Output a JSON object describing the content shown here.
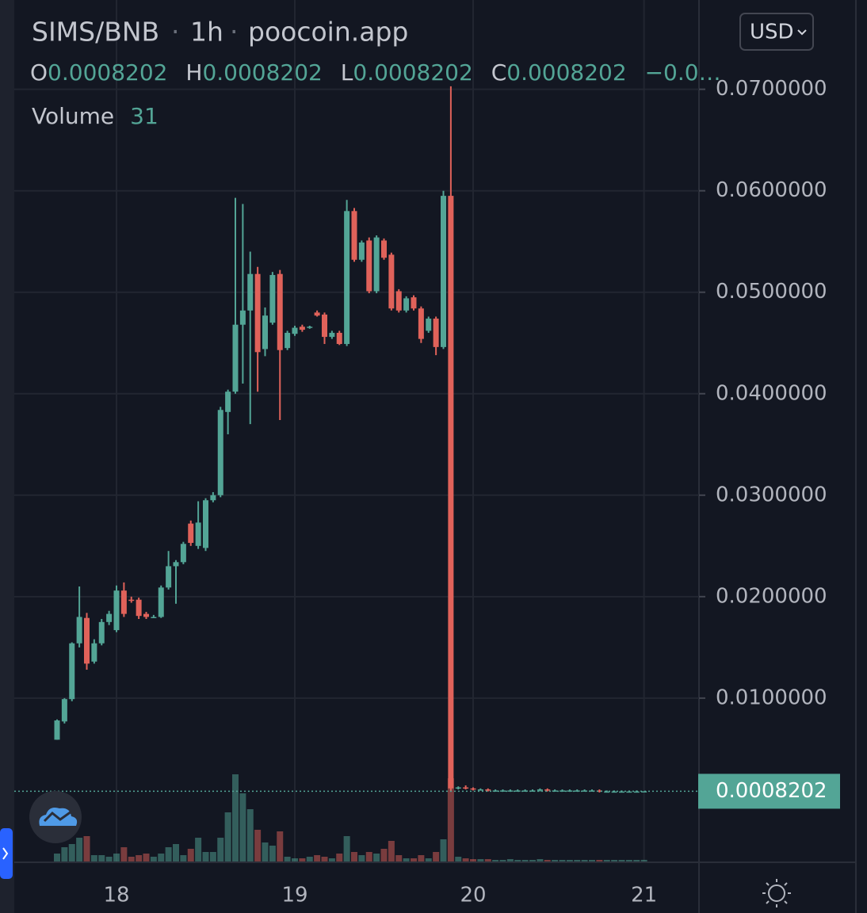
{
  "chart_data": {
    "type": "candlestick",
    "title": "SIMS/BNB",
    "interval": "1h",
    "source": "poocoin.app",
    "currency": "USD",
    "ohlc_labels": [
      "O",
      "H",
      "L",
      "C"
    ],
    "change": "−0.0…",
    "volume_label": "Volume",
    "up_color": "#53a596",
    "down_color": "#e0625a",
    "grid": true,
    "ylim": [
      -0.0061,
      0.0788
    ],
    "yticks": [
      {
        "value": 0.01,
        "label": "0.0100000"
      },
      {
        "value": 0.02,
        "label": "0.0200000"
      },
      {
        "value": 0.03,
        "label": "0.0300000"
      },
      {
        "value": 0.04,
        "label": "0.0400000"
      },
      {
        "value": 0.05,
        "label": "0.0500000"
      },
      {
        "value": 0.06,
        "label": "0.0600000"
      },
      {
        "value": 0.07,
        "label": "0.0700000"
      }
    ],
    "categories": [
      null,
      null,
      null,
      null,
      null,
      null,
      null,
      null,
      "18",
      null,
      null,
      null,
      null,
      null,
      null,
      null,
      null,
      null,
      null,
      null,
      null,
      null,
      null,
      null,
      null,
      null,
      null,
      null,
      null,
      null,
      null,
      null,
      "19",
      null,
      null,
      null,
      null,
      null,
      null,
      null,
      null,
      null,
      null,
      null,
      null,
      null,
      null,
      null,
      null,
      null,
      null,
      null,
      null,
      null,
      null,
      null,
      "20",
      null,
      null,
      null,
      null,
      null,
      null,
      null,
      null,
      null,
      null,
      null,
      null,
      null,
      null,
      null,
      null,
      null,
      null,
      null,
      null,
      null,
      null,
      "21"
    ],
    "open": [
      0.0059,
      0.0077,
      0.0099,
      0.0154,
      0.0179,
      0.0136,
      0.0154,
      0.0175,
      0.0167,
      0.0206,
      0.0197,
      0.0197,
      0.0183,
      0.018,
      0.018,
      0.0209,
      0.023,
      0.0234,
      0.0272,
      0.025,
      0.0248,
      0.0295,
      0.03,
      0.0382,
      0.0402,
      0.0468,
      0.0482,
      0.0518,
      0.0444,
      0.047,
      0.0518,
      0.0445,
      0.0459,
      0.0466,
      0.0465,
      0.048,
      0.0478,
      0.0456,
      0.046,
      0.0449,
      0.058,
      0.0532,
      0.0551,
      0.0501,
      0.0551,
      0.0537,
      0.0501,
      0.0482,
      0.0495,
      0.0484,
      0.0462,
      0.0474,
      0.0446,
      0.0595,
      0.0011,
      0.0012,
      0.0011,
      0.001,
      0.001,
      0.0009,
      0.0009,
      0.0009,
      0.0009,
      0.0009,
      0.0009,
      0.0009,
      0.001,
      0.0009,
      0.0009,
      0.0009,
      0.0009,
      0.0009,
      0.0009,
      0.0009,
      0.0008,
      0.0008,
      0.0008,
      0.0008,
      0.0008,
      0.0008202
    ],
    "high": [
      0.0079,
      0.01,
      0.0155,
      0.021,
      0.0184,
      0.0158,
      0.0178,
      0.0186,
      0.0211,
      0.0214,
      0.02,
      0.0199,
      0.0185,
      0.0182,
      0.0211,
      0.0245,
      0.0236,
      0.0254,
      0.0275,
      0.0294,
      0.0297,
      0.0303,
      0.0387,
      0.0404,
      0.0593,
      0.0587,
      0.054,
      0.0525,
      0.0485,
      0.052,
      0.0522,
      0.0462,
      0.0467,
      0.0468,
      0.0467,
      0.0482,
      0.048,
      0.0462,
      0.0462,
      0.0591,
      0.0583,
      0.0551,
      0.0554,
      0.0556,
      0.0553,
      0.0539,
      0.0503,
      0.0496,
      0.0497,
      0.0486,
      0.0476,
      0.0476,
      0.06,
      0.0703,
      0.0013,
      0.0014,
      0.0012,
      0.0011,
      0.0011,
      0.001,
      0.001,
      0.001,
      0.001,
      0.001,
      0.001,
      0.0011,
      0.0011,
      0.001,
      0.001,
      0.001,
      0.001,
      0.001,
      0.001,
      0.001,
      0.0009,
      0.0009,
      0.0009,
      0.0009,
      0.0009,
      0.0008202
    ],
    "low": [
      0.0059,
      0.0075,
      0.0097,
      0.015,
      0.0128,
      0.0134,
      0.0152,
      0.0172,
      0.0165,
      0.018,
      0.0194,
      0.0178,
      0.0178,
      0.0179,
      0.0179,
      0.0207,
      0.0193,
      0.0232,
      0.025,
      0.0247,
      0.0245,
      0.0293,
      0.0298,
      0.036,
      0.04,
      0.041,
      0.037,
      0.0402,
      0.0437,
      0.0468,
      0.0374,
      0.0443,
      0.0457,
      0.0461,
      0.0464,
      0.0476,
      0.0449,
      0.0454,
      0.0448,
      0.0447,
      0.053,
      0.053,
      0.0499,
      0.0499,
      0.0532,
      0.0482,
      0.048,
      0.048,
      0.0482,
      0.045,
      0.046,
      0.0438,
      0.0444,
      0.0008,
      0.001,
      0.001,
      0.0009,
      0.0009,
      0.0008,
      0.0008,
      0.0008,
      0.0008,
      0.0008,
      0.0008,
      0.0008,
      0.0008,
      0.0008,
      0.0008,
      0.0008,
      0.0008,
      0.0008,
      0.0008,
      0.0008,
      0.0007,
      0.0007,
      0.0007,
      0.0007,
      0.0007,
      0.0007,
      0.0008202
    ],
    "close": [
      0.0078,
      0.0099,
      0.0154,
      0.018,
      0.0134,
      0.0154,
      0.0175,
      0.0183,
      0.0206,
      0.0183,
      0.0196,
      0.0181,
      0.018,
      0.018,
      0.0209,
      0.023,
      0.0234,
      0.0252,
      0.0253,
      0.0273,
      0.0295,
      0.03,
      0.0384,
      0.0402,
      0.0468,
      0.0482,
      0.0518,
      0.0441,
      0.0477,
      0.0517,
      0.0443,
      0.046,
      0.0465,
      0.0463,
      0.0466,
      0.0477,
      0.0456,
      0.046,
      0.0449,
      0.058,
      0.0532,
      0.0549,
      0.0501,
      0.0554,
      0.0534,
      0.0484,
      0.0482,
      0.0494,
      0.0484,
      0.0454,
      0.0474,
      0.0446,
      0.0595,
      0.0011,
      0.0012,
      0.0011,
      0.001,
      0.001,
      0.0009,
      0.0009,
      0.0009,
      0.0009,
      0.0009,
      0.0009,
      0.0009,
      0.001,
      0.0009,
      0.0009,
      0.0009,
      0.0009,
      0.0009,
      0.0009,
      0.0009,
      0.0008,
      0.0008,
      0.0008,
      0.0008,
      0.0008,
      0.0008,
      0.0008202
    ],
    "volume": [
      150,
      270,
      330,
      450,
      480,
      120,
      120,
      90,
      150,
      270,
      90,
      120,
      150,
      90,
      150,
      270,
      330,
      120,
      240,
      450,
      180,
      180,
      450,
      930,
      1650,
      1290,
      990,
      600,
      360,
      300,
      570,
      90,
      60,
      60,
      90,
      120,
      90,
      60,
      150,
      480,
      180,
      120,
      180,
      150,
      240,
      390,
      120,
      60,
      60,
      120,
      60,
      180,
      420,
      1575,
      90,
      60,
      45,
      45,
      45,
      30,
      30,
      45,
      30,
      30,
      30,
      45,
      30,
      30,
      30,
      30,
      30,
      30,
      30,
      30,
      30,
      30,
      30,
      30,
      30,
      31
    ]
  }
}
